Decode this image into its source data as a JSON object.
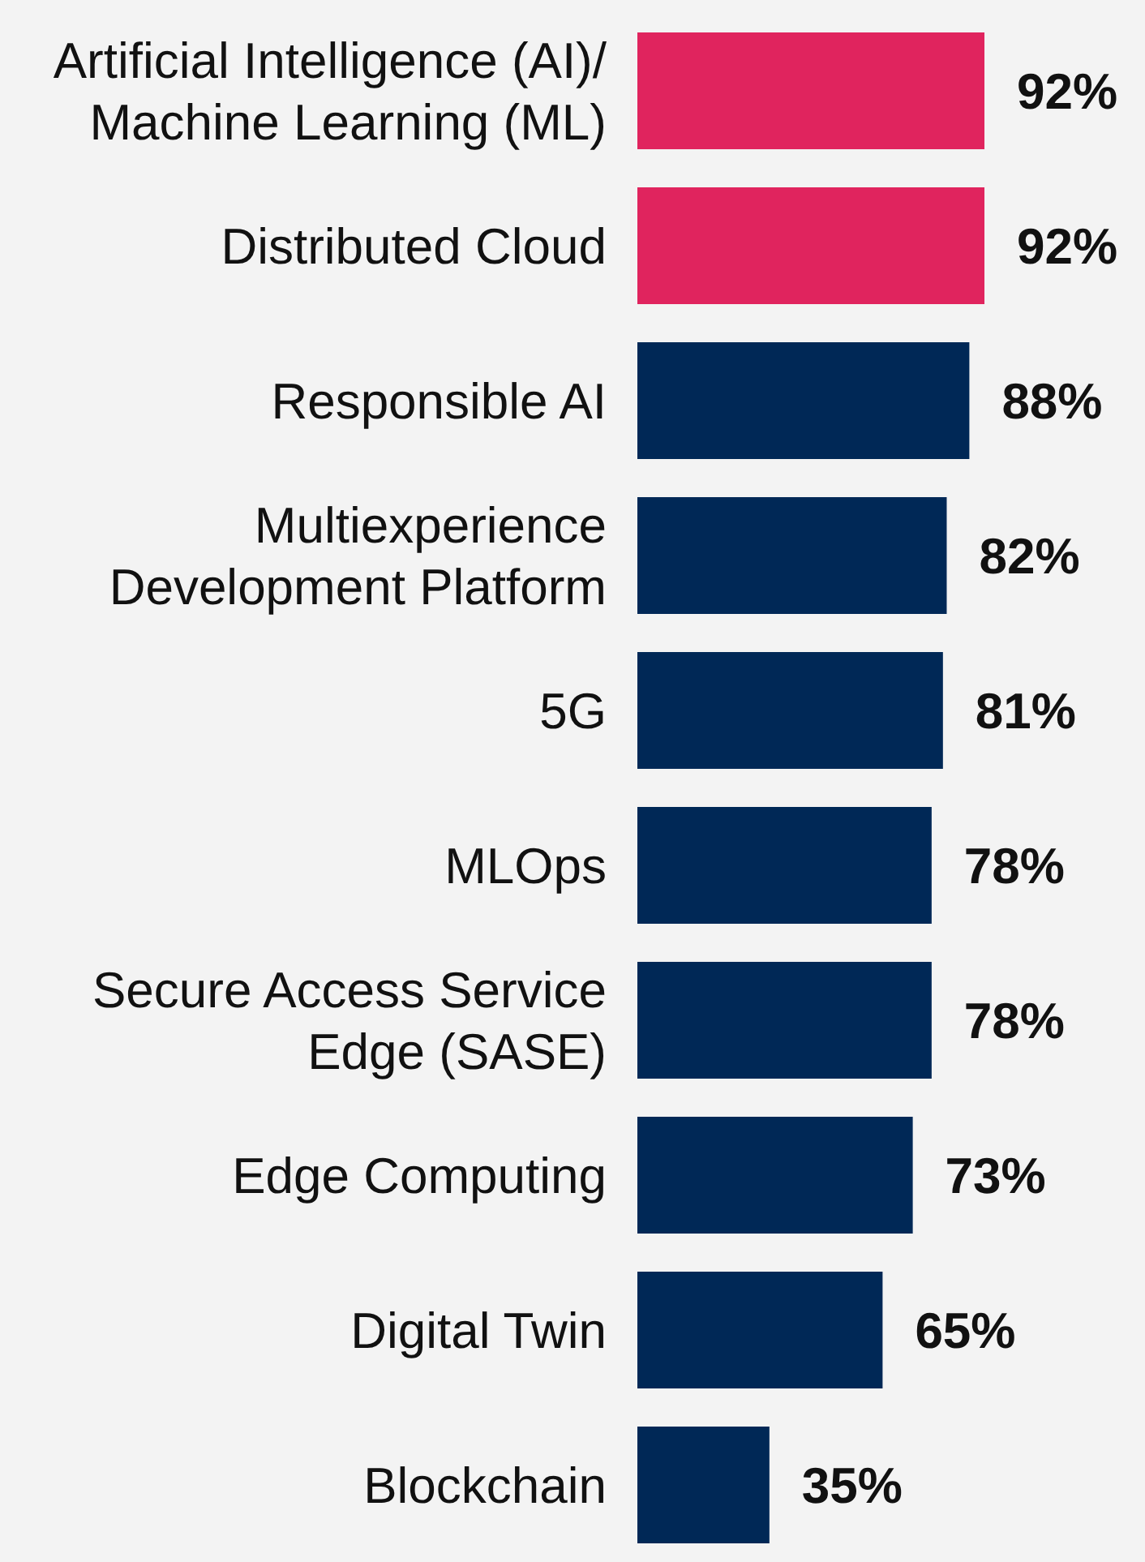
{
  "chart_data": {
    "type": "bar",
    "orientation": "horizontal",
    "categories": [
      "Artificial Intelligence (AI)/\nMachine Learning (ML)",
      "Distributed Cloud",
      "Responsible AI",
      "Multiexperience\nDevelopment Platform",
      "5G",
      "MLOps",
      "Secure Access Service\nEdge (SASE)",
      "Edge Computing",
      "Digital Twin",
      "Blockchain"
    ],
    "values": [
      92,
      92,
      88,
      82,
      81,
      78,
      78,
      73,
      65,
      35
    ],
    "colors": [
      "#e0245e",
      "#e0245e",
      "#002856",
      "#002856",
      "#002856",
      "#002856",
      "#002856",
      "#002856",
      "#002856",
      "#002856"
    ],
    "value_labels": [
      "92%",
      "92%",
      "88%",
      "82%",
      "81%",
      "78%",
      "78%",
      "73%",
      "65%",
      "35%"
    ]
  }
}
